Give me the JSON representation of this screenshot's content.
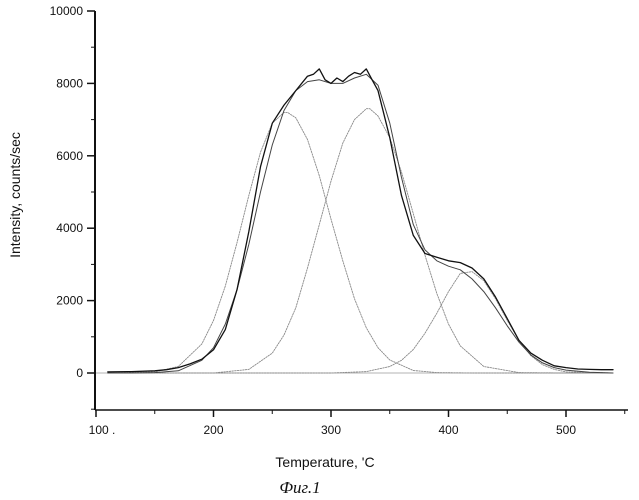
{
  "figure_caption": "Фиг.1",
  "chart_data": {
    "type": "line",
    "title": "",
    "xlabel": "Temperature, 'C",
    "ylabel": "Intensity, counts/sec",
    "xlim": [
      100,
      550
    ],
    "ylim": [
      -1000,
      10000
    ],
    "xticks": [
      100,
      200,
      300,
      400,
      500
    ],
    "xtick_labels": [
      "100 .",
      "200",
      "300",
      "400",
      "500"
    ],
    "yticks": [
      0,
      2000,
      4000,
      6000,
      8000,
      10000
    ],
    "ytick_labels": [
      "0",
      "2000",
      "4000",
      "6000",
      "8000",
      "10000"
    ],
    "grid": false,
    "legend": "none",
    "colors": {
      "measured": "#111111",
      "fit": "#444444",
      "component": "#8a8a8a"
    },
    "series": [
      {
        "role": "measured",
        "x": [
          110,
          130,
          150,
          160,
          170,
          180,
          190,
          200,
          210,
          220,
          230,
          240,
          250,
          260,
          270,
          280,
          285,
          290,
          295,
          300,
          305,
          310,
          315,
          320,
          325,
          330,
          335,
          340,
          350,
          360,
          370,
          380,
          390,
          400,
          410,
          420,
          430,
          440,
          450,
          460,
          470,
          480,
          490,
          500,
          510,
          520,
          530,
          540
        ],
        "y": [
          30,
          40,
          60,
          90,
          150,
          250,
          380,
          640,
          1200,
          2300,
          3900,
          5700,
          6900,
          7400,
          7800,
          8200,
          8250,
          8400,
          8100,
          8000,
          8150,
          8050,
          8200,
          8300,
          8250,
          8400,
          8100,
          7800,
          6500,
          4900,
          3800,
          3300,
          3200,
          3100,
          3050,
          2900,
          2600,
          2100,
          1500,
          900,
          550,
          350,
          200,
          150,
          110,
          100,
          90,
          90
        ]
      },
      {
        "role": "fit",
        "x": [
          110,
          130,
          150,
          170,
          190,
          200,
          210,
          220,
          230,
          240,
          250,
          260,
          270,
          280,
          290,
          300,
          310,
          320,
          330,
          340,
          350,
          360,
          370,
          380,
          390,
          400,
          410,
          420,
          430,
          440,
          450,
          460,
          470,
          480,
          490,
          500,
          520,
          540
        ],
        "y": [
          0,
          0,
          10,
          60,
          350,
          700,
          1350,
          2300,
          3550,
          5000,
          6300,
          7250,
          7800,
          8050,
          8100,
          8000,
          8000,
          8150,
          8250,
          7950,
          6900,
          5400,
          4100,
          3400,
          3100,
          2950,
          2850,
          2600,
          2250,
          1800,
          1300,
          850,
          500,
          280,
          150,
          80,
          20,
          0
        ]
      },
      {
        "role": "component",
        "peak": 263,
        "amplitude": 7200,
        "x": [
          110,
          150,
          170,
          190,
          200,
          210,
          220,
          230,
          240,
          250,
          260,
          263,
          270,
          280,
          290,
          300,
          310,
          320,
          330,
          340,
          350,
          370,
          390,
          420,
          460,
          540
        ],
        "y": [
          0,
          30,
          180,
          800,
          1450,
          2400,
          3600,
          4900,
          6100,
          6900,
          7200,
          7200,
          7050,
          6450,
          5450,
          4250,
          3100,
          2050,
          1250,
          700,
          360,
          70,
          10,
          0,
          0,
          0
        ]
      },
      {
        "role": "component",
        "peak": 333,
        "amplitude": 7300,
        "x": [
          110,
          200,
          230,
          250,
          260,
          270,
          280,
          290,
          300,
          310,
          320,
          330,
          333,
          340,
          350,
          360,
          370,
          380,
          390,
          400,
          410,
          430,
          460,
          500,
          540
        ],
        "y": [
          0,
          0,
          100,
          550,
          1050,
          1800,
          2900,
          4100,
          5300,
          6350,
          7000,
          7300,
          7300,
          7100,
          6500,
          5550,
          4400,
          3250,
          2200,
          1350,
          750,
          180,
          10,
          0,
          0
        ]
      },
      {
        "role": "component",
        "peak": 410,
        "amplitude": 2800,
        "x": [
          110,
          300,
          330,
          350,
          360,
          370,
          380,
          390,
          400,
          410,
          420,
          430,
          440,
          450,
          460,
          470,
          480,
          490,
          500,
          540
        ],
        "y": [
          0,
          0,
          40,
          180,
          350,
          650,
          1100,
          1650,
          2250,
          2750,
          2800,
          2550,
          2050,
          1450,
          900,
          480,
          230,
          100,
          30,
          0
        ]
      }
    ]
  }
}
